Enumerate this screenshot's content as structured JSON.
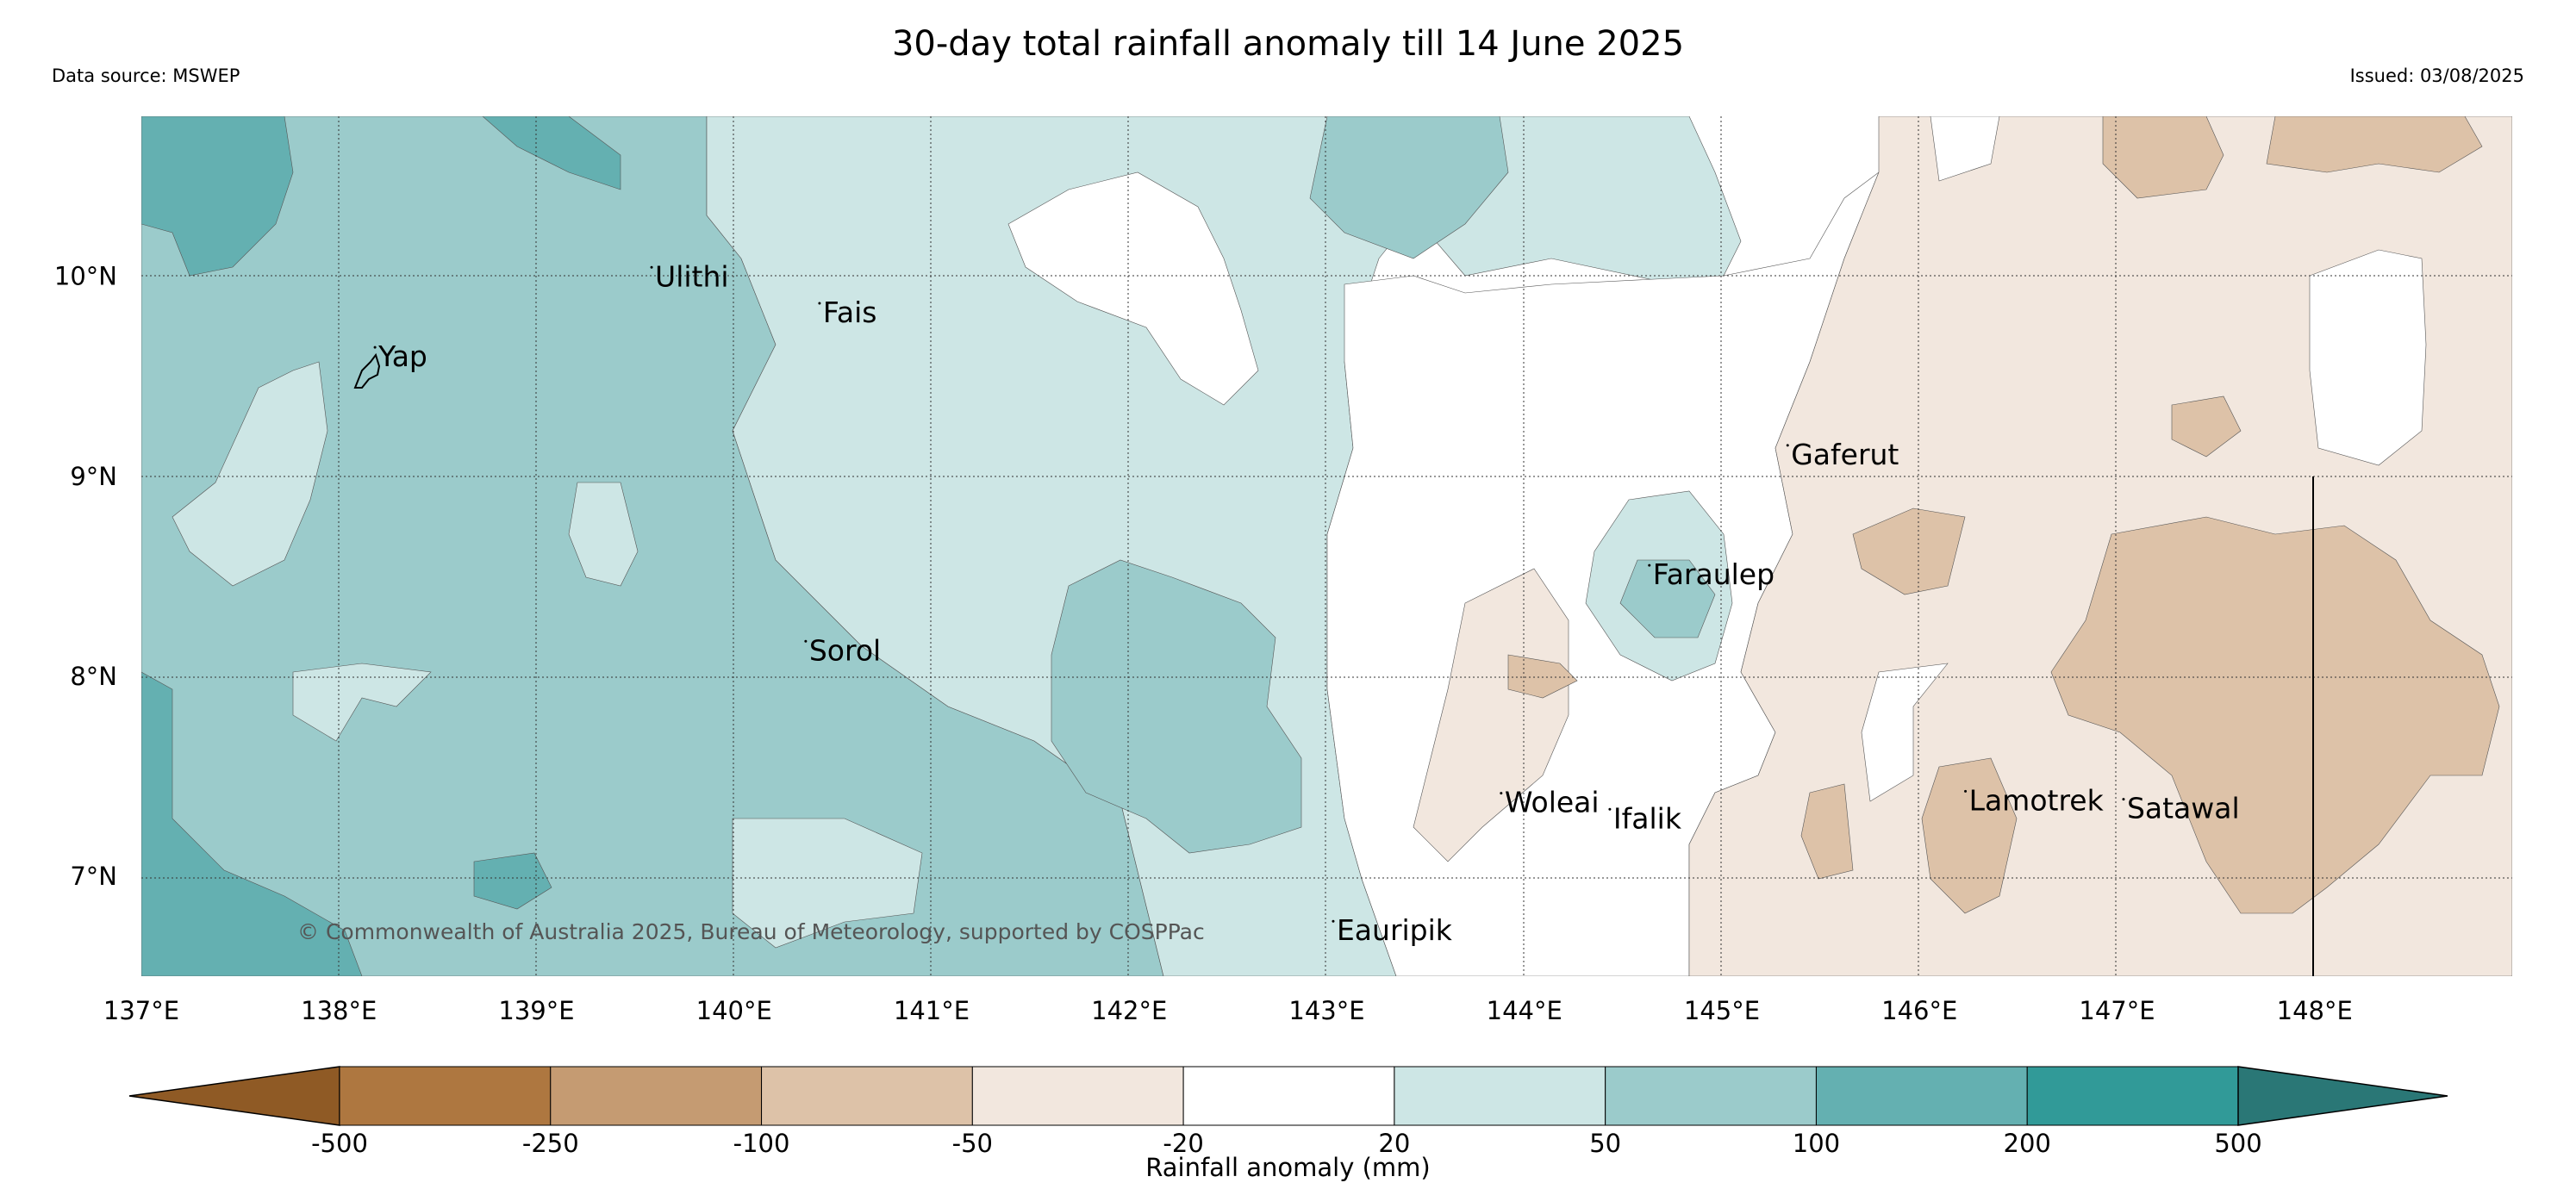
{
  "title": "30-day total rainfall anomaly till 14 June 2025",
  "source": "Data source: MSWEP",
  "issued": "Issued: 03/08/2025",
  "copyright": "© Commonwealth of Australia 2025, Bureau of Meteorology, supported by COSPPac",
  "map": {
    "lon_range": [
      137,
      149
    ],
    "lat_range": [
      6.5,
      10.8
    ],
    "lon_ticks": [
      "137°E",
      "138°E",
      "139°E",
      "140°E",
      "141°E",
      "142°E",
      "143°E",
      "144°E",
      "145°E",
      "146°E",
      "147°E",
      "148°E"
    ],
    "lat_ticks": [
      "10°N",
      "9°N",
      "8°N",
      "7°N"
    ],
    "places": [
      {
        "name": "Ulithi",
        "lon": 139.6,
        "lat": 9.95
      },
      {
        "name": "Fais",
        "lon": 140.45,
        "lat": 9.77
      },
      {
        "name": "Yap",
        "lon": 138.2,
        "lat": 9.55
      },
      {
        "name": "Gaferut",
        "lon": 145.35,
        "lat": 9.06
      },
      {
        "name": "Faraulep",
        "lon": 144.65,
        "lat": 8.46
      },
      {
        "name": "Sorol",
        "lon": 140.38,
        "lat": 8.08
      },
      {
        "name": "Woleai",
        "lon": 143.9,
        "lat": 7.32
      },
      {
        "name": "Ifalik",
        "lon": 144.45,
        "lat": 7.24
      },
      {
        "name": "Lamotrek",
        "lon": 146.25,
        "lat": 7.33
      },
      {
        "name": "Satawal",
        "lon": 147.05,
        "lat": 7.29
      },
      {
        "name": "Eauripik",
        "lon": 143.05,
        "lat": 6.68
      }
    ]
  },
  "colorbar": {
    "label": "Rainfall anomaly (mm)",
    "ticks": [
      "-500",
      "-250",
      "-100",
      "-50",
      "-20",
      "20",
      "50",
      "100",
      "200",
      "500"
    ],
    "colors": [
      "#8f5a25",
      "#ae7740",
      "#c59b72",
      "#ddc2a8",
      "#f2e7de",
      "#ffffff",
      "#cde6e5",
      "#9bcbcb",
      "#64b0b1",
      "#319a98",
      "#2a7776"
    ]
  }
}
